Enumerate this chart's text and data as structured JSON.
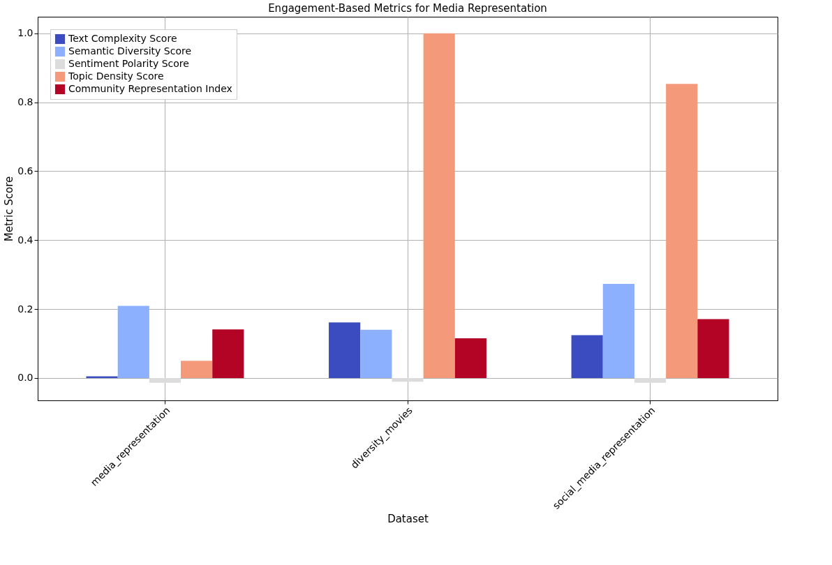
{
  "chart_data": {
    "type": "bar",
    "title": "Engagement-Based Metrics for Media Representation",
    "xlabel": "Dataset",
    "ylabel": "Metric Score",
    "categories": [
      "media_representation",
      "diversity_movies",
      "social_media_representation"
    ],
    "series": [
      {
        "name": "Text Complexity Score",
        "color": "#3b4cc0",
        "values": [
          0.005,
          0.161,
          0.124
        ]
      },
      {
        "name": "Semantic Diversity Score",
        "color": "#8db0fe",
        "values": [
          0.209,
          0.14,
          0.273
        ]
      },
      {
        "name": "Sentiment Polarity Score",
        "color": "#dddcdc",
        "values": [
          -0.014,
          -0.011,
          -0.014
        ]
      },
      {
        "name": "Topic Density Score",
        "color": "#f49a7b",
        "values": [
          0.05,
          1.0,
          0.853
        ]
      },
      {
        "name": "Community Representation Index",
        "color": "#b40426",
        "values": [
          0.141,
          0.115,
          0.171
        ]
      }
    ],
    "ylim": [
      -0.065,
      1.048
    ],
    "yticks": [
      {
        "value": 0,
        "label": "0.0"
      },
      0.2,
      0.4,
      0.6,
      0.8,
      {
        "value": 1,
        "label": "1.0"
      }
    ],
    "grid": true,
    "legend": "top left"
  }
}
